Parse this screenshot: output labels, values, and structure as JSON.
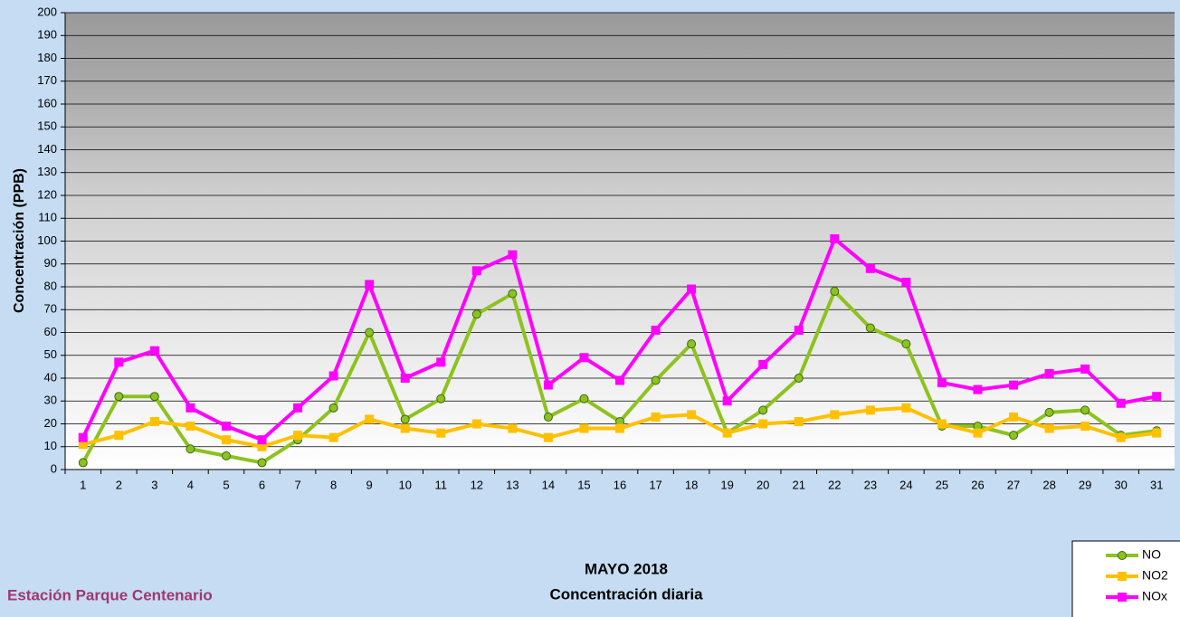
{
  "chart_data": {
    "type": "line",
    "title": "MAYO 2018",
    "subtitle": "Concentración diaria",
    "station": "Estación Parque Centenario",
    "y_label": "Concentración  (PPB)",
    "categories": [
      "1",
      "2",
      "3",
      "4",
      "5",
      "6",
      "7",
      "8",
      "9",
      "10",
      "11",
      "12",
      "13",
      "14",
      "15",
      "16",
      "17",
      "18",
      "19",
      "20",
      "21",
      "22",
      "23",
      "24",
      "25",
      "26",
      "27",
      "28",
      "29",
      "30",
      "31"
    ],
    "series": [
      {
        "name": "NO",
        "color": "#8dc21f",
        "marker": "circle",
        "values": [
          3,
          32,
          32,
          9,
          6,
          3,
          13,
          27,
          60,
          22,
          31,
          68,
          77,
          23,
          31,
          21,
          39,
          55,
          16,
          26,
          40,
          78,
          62,
          55,
          19,
          19,
          15,
          25,
          26,
          15,
          17
        ]
      },
      {
        "name": "NO2",
        "color": "#ffc000",
        "marker": "square",
        "values": [
          11,
          15,
          21,
          19,
          13,
          10,
          15,
          14,
          22,
          18,
          16,
          20,
          18,
          14,
          18,
          18,
          23,
          24,
          16,
          20,
          21,
          24,
          26,
          27,
          20,
          16,
          23,
          18,
          19,
          14,
          16
        ]
      },
      {
        "name": "NOx",
        "color": "#ff00ff",
        "marker": "square",
        "values": [
          14,
          47,
          52,
          27,
          19,
          13,
          27,
          41,
          81,
          40,
          47,
          87,
          94,
          37,
          49,
          39,
          61,
          79,
          30,
          46,
          61,
          101,
          88,
          82,
          38,
          35,
          37,
          42,
          44,
          29,
          32
        ]
      }
    ],
    "ylim": [
      0,
      200
    ],
    "yticks": [
      0,
      10,
      20,
      30,
      40,
      50,
      60,
      70,
      80,
      90,
      100,
      110,
      120,
      130,
      140,
      150,
      160,
      170,
      180,
      190,
      200
    ],
    "grid": true
  }
}
